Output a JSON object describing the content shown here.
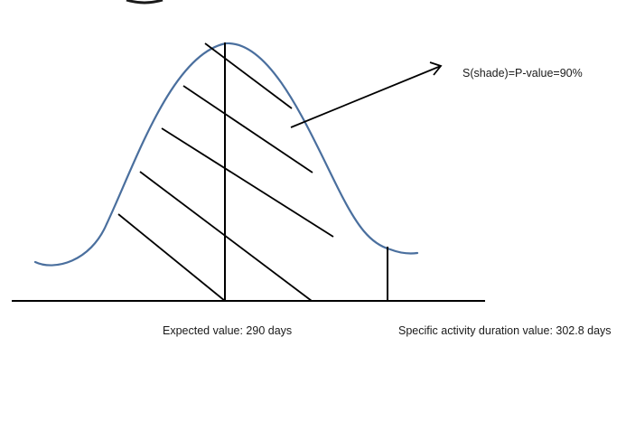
{
  "annotation": {
    "shade_text": "S(shade)=P-value=90%"
  },
  "labels": {
    "expected_value": "Expected value: 290 days",
    "specific_value": "Specific activity duration value: 302.8 days"
  },
  "colors": {
    "curve": "#4a6f9e",
    "lines": "#000000",
    "text": "#1a1a1a"
  }
}
